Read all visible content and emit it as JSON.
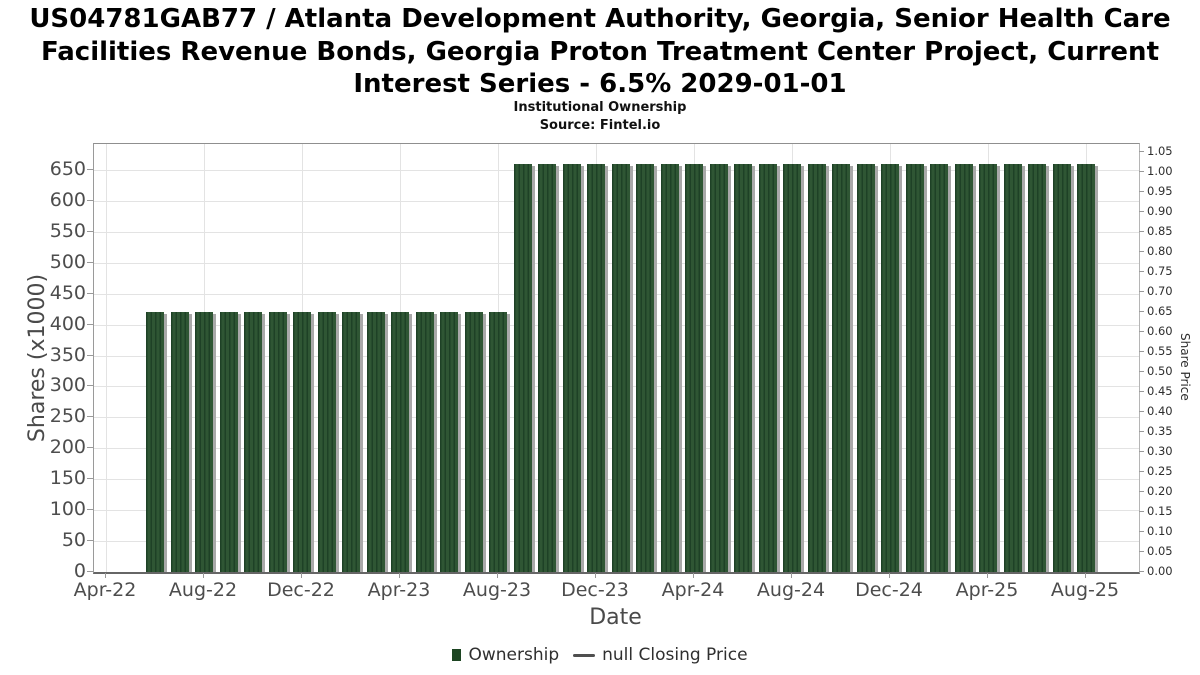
{
  "header": {
    "title_lines": [
      "US04781GAB77 / Atlanta Development Authority, Georgia, Senior Health Care",
      "Facilities Revenue Bonds, Georgia Proton Treatment Center Project, Current",
      "Interest Series - 6.5% 2029-01-01"
    ],
    "subtitle": "Institutional Ownership",
    "source": "Source: Fintel.io"
  },
  "chart_data": {
    "type": "bar",
    "title": "Institutional Ownership",
    "xlabel": "Date",
    "ylabel_left": "Shares (x1000)",
    "ylabel_right": "Share Price",
    "categories": [
      "Jun-22",
      "Jul-22",
      "Aug-22",
      "Sep-22",
      "Oct-22",
      "Nov-22",
      "Dec-22",
      "Jan-23",
      "Feb-23",
      "Mar-23",
      "Apr-23",
      "May-23",
      "Jun-23",
      "Jul-23",
      "Aug-23",
      "Sep-23",
      "Oct-23",
      "Nov-23",
      "Dec-23",
      "Jan-24",
      "Feb-24",
      "Mar-24",
      "Apr-24",
      "May-24",
      "Jun-24",
      "Jul-24",
      "Aug-24",
      "Sep-24",
      "Oct-24",
      "Nov-24",
      "Dec-24",
      "Jan-25",
      "Feb-25",
      "Mar-25",
      "Apr-25",
      "May-25",
      "Jun-25",
      "Jul-25",
      "Aug-25"
    ],
    "series": [
      {
        "name": "Ownership",
        "values": [
          420,
          420,
          420,
          420,
          420,
          420,
          420,
          420,
          420,
          420,
          420,
          420,
          420,
          420,
          420,
          660,
          660,
          660,
          660,
          660,
          660,
          660,
          660,
          660,
          660,
          660,
          660,
          660,
          660,
          660,
          660,
          660,
          660,
          660,
          660,
          660,
          660,
          660,
          660
        ]
      },
      {
        "name": "null Closing Price",
        "values": []
      }
    ],
    "x_tick_labels": [
      "Apr-22",
      "Aug-22",
      "Dec-22",
      "Apr-23",
      "Aug-23",
      "Dec-23",
      "Apr-24",
      "Aug-24",
      "Dec-24",
      "Apr-25",
      "Aug-25"
    ],
    "y_left_ticks": [
      0,
      50,
      100,
      150,
      200,
      250,
      300,
      350,
      400,
      450,
      500,
      550,
      600,
      650
    ],
    "y_left_axis_max": 692,
    "y_right_tick_labels": [
      "0.00",
      "0.05",
      "0.10",
      "0.15",
      "0.20",
      "0.25",
      "0.30",
      "0.35",
      "0.40",
      "0.45",
      "0.50",
      "0.55",
      "0.60",
      "0.65",
      "0.70",
      "0.75",
      "0.80",
      "0.85",
      "0.90",
      "0.95",
      "1.00",
      "1.05"
    ],
    "y_right_axis_max": 1.07,
    "grid": true,
    "legend_position": "bottom",
    "colors": {
      "bar_fill": "#2f5634",
      "bar_stripe": "#1e4126",
      "bar_shadow": "#a9a9a9",
      "grid_line": "#e3e3e3",
      "legend_square": "#1d4522",
      "legend_dash": "#4f4f4f"
    }
  },
  "legend": {
    "items": [
      {
        "label": "Ownership",
        "marker": "square"
      },
      {
        "label": "null Closing Price",
        "marker": "line"
      }
    ]
  }
}
